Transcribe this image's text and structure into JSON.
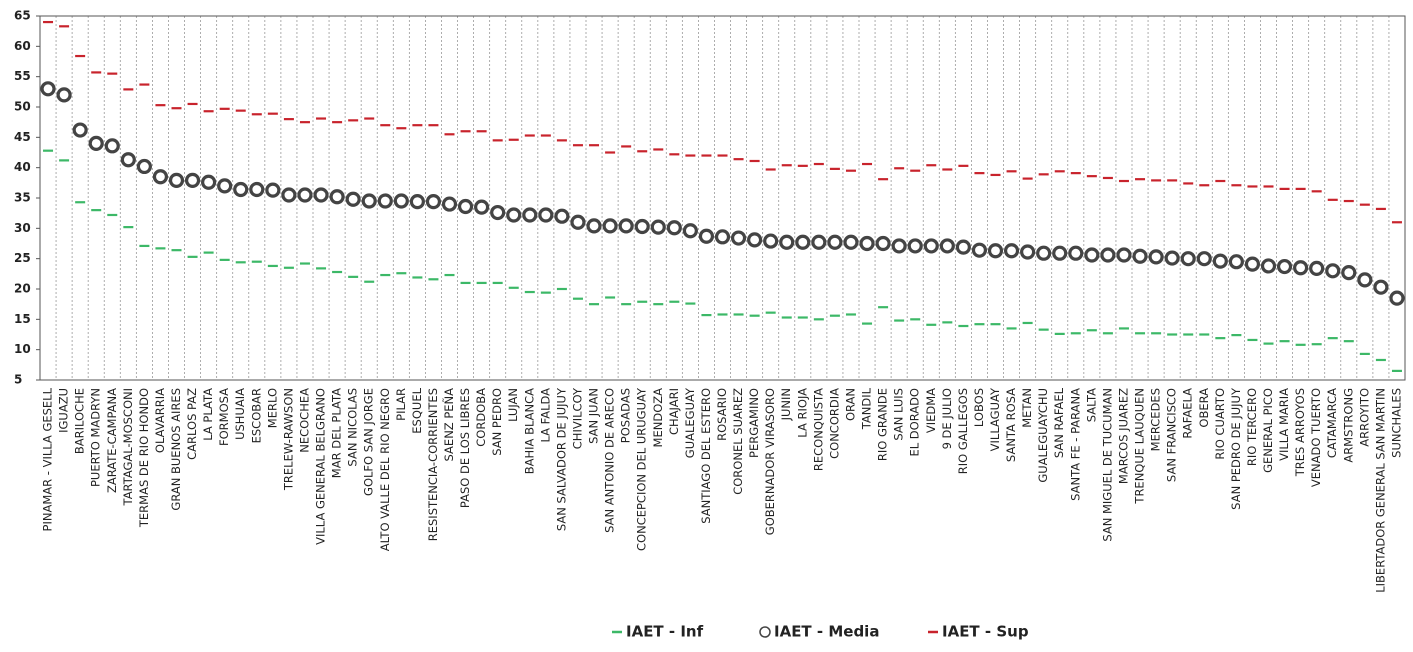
{
  "chart_data": {
    "type": "dot-range",
    "categories": [
      "PINAMAR - VILLA GESELL",
      "IGUAZU",
      "BARILOCHE",
      "PUERTO MADRYN",
      "ZARATE-CAMPANA",
      "TARTAGAL-MOSCONI",
      "TERMAS DE RIO HONDO",
      "OLAVARRIA",
      "GRAN BUENOS AIRES",
      "CARLOS PAZ",
      "LA PLATA",
      "FORMOSA",
      "USHUAIA",
      "ESCOBAR",
      "MERLO",
      "TRELEW-RAWSON",
      "NECOCHEA",
      "VILLA GENERAL BELGRANO",
      "MAR DEL PLATA",
      "SAN NICOLAS",
      "GOLFO SAN JORGE",
      "ALTO VALLE DEL RIO NEGRO",
      "PILAR",
      "ESQUEL",
      "RESISTENCIA-CORRIENTES",
      "SAENZ PEÑA",
      "PASO DE LOS LIBRES",
      "CORDOBA",
      "SAN PEDRO",
      "LUJAN",
      "BAHIA BLANCA",
      "LA FALDA",
      "SAN SALVADOR DE JUJUY",
      "CHIVILCOY",
      "SAN JUAN",
      "SAN ANTONIO DE ARECO",
      "POSADAS",
      "CONCEPCION DEL URUGUAY",
      "MENDOZA",
      "CHAJARI",
      "GUALEGUAY",
      "SANTIAGO DEL ESTERO",
      "ROSARIO",
      "CORONEL SUAREZ",
      "PERGAMINO",
      "GOBERNADOR VIRASORO",
      "JUNIN",
      "LA RIOJA",
      "RECONQUISTA",
      "CONCORDIA",
      "ORAN",
      "TANDIL",
      "RIO GRANDE",
      "SAN LUIS",
      "EL DORADO",
      "VIEDMA",
      "9 DE JULIO",
      "RIO GALLEGOS",
      "LOBOS",
      "VILLAGUAY",
      "SANTA ROSA",
      "METAN",
      "GUALEGUAYCHU",
      "SAN RAFAEL",
      "SANTA FE - PARANA",
      "SALTA",
      "SAN MIGUEL DE TUCUMAN",
      "MARCOS JUAREZ",
      "TRENQUE LAUQUEN",
      "MERCEDES",
      "SAN FRANCISCO",
      "RAFAELA",
      "OBERA",
      "RIO CUARTO",
      "SAN PEDRO DE JUJUY",
      "RIO TERCERO",
      "GENERAL PICO",
      "VILLA MARIA",
      "TRES ARROYOS",
      "VENADO TUERTO",
      "CATAMARCA",
      "ARMSTRONG",
      "ARROYITO",
      "LIBERTADOR GENERAL SAN MARTIN",
      "SUNCHALES"
    ],
    "series": [
      {
        "name": "IAET - Inf",
        "color": "#3cb867",
        "marker": "dash",
        "values": [
          42.8,
          41.2,
          34.3,
          33,
          32.2,
          30.2,
          27.1,
          26.7,
          26.4,
          25.3,
          26,
          24.8,
          24.4,
          24.5,
          23.8,
          23.5,
          24.2,
          23.4,
          22.8,
          22,
          21.2,
          22.3,
          22.6,
          21.9,
          21.6,
          22.3,
          21,
          21,
          21,
          20.2,
          19.5,
          19.4,
          20,
          18.4,
          17.5,
          18.6,
          17.5,
          17.9,
          17.5,
          17.9,
          17.6,
          15.7,
          15.8,
          15.8,
          15.6,
          16.1,
          15.3,
          15.3,
          15,
          15.6,
          15.8,
          14.3,
          17,
          14.8,
          15,
          14.1,
          14.5,
          13.9,
          14.2,
          14.2,
          13.5,
          14.4,
          13.3,
          12.6,
          12.7,
          13.2,
          12.7,
          13.5,
          12.7,
          12.7,
          12.5,
          12.5,
          12.5,
          11.9,
          12.4,
          11.6,
          11,
          11.4,
          10.8,
          10.9,
          11.9,
          11.4,
          9.3,
          8.3,
          6.5
        ]
      },
      {
        "name": "IAET - Media",
        "color": "#444444",
        "marker": "circle",
        "values": [
          53,
          52,
          46.2,
          44,
          43.6,
          41.3,
          40.2,
          38.5,
          37.9,
          37.9,
          37.6,
          37,
          36.4,
          36.4,
          36.3,
          35.5,
          35.5,
          35.5,
          35.2,
          34.8,
          34.5,
          34.5,
          34.5,
          34.4,
          34.4,
          34,
          33.6,
          33.5,
          32.6,
          32.2,
          32.2,
          32.2,
          32,
          31,
          30.4,
          30.4,
          30.4,
          30.3,
          30.2,
          30.1,
          29.6,
          28.7,
          28.6,
          28.4,
          28.1,
          27.9,
          27.7,
          27.7,
          27.7,
          27.7,
          27.7,
          27.5,
          27.5,
          27.1,
          27.1,
          27.1,
          27.1,
          26.9,
          26.4,
          26.3,
          26.3,
          26.1,
          25.9,
          25.9,
          25.9,
          25.6,
          25.6,
          25.6,
          25.4,
          25.3,
          25.1,
          25,
          25,
          24.6,
          24.5,
          24.1,
          23.8,
          23.7,
          23.5,
          23.4,
          23,
          22.7,
          21.5,
          20.3,
          18.5
        ]
      },
      {
        "name": "IAET - Sup",
        "color": "#c8232c",
        "marker": "dash",
        "values": [
          64,
          63.3,
          58.4,
          55.7,
          55.5,
          52.9,
          53.7,
          50.3,
          49.8,
          50.5,
          49.3,
          49.7,
          49.4,
          48.8,
          48.9,
          48,
          47.5,
          48.1,
          47.5,
          47.8,
          48.1,
          47,
          46.5,
          47,
          47,
          45.5,
          46,
          46,
          44.5,
          44.6,
          45.3,
          45.3,
          44.5,
          43.7,
          43.7,
          42.5,
          43.5,
          42.7,
          43,
          42.2,
          42,
          42,
          42,
          41.4,
          41.1,
          39.7,
          40.4,
          40.3,
          40.6,
          39.8,
          39.5,
          40.6,
          38.1,
          39.9,
          39.5,
          40.4,
          39.7,
          40.3,
          39.1,
          38.8,
          39.4,
          38.2,
          38.9,
          39.4,
          39.1,
          38.6,
          38.3,
          37.8,
          38.1,
          37.9,
          37.9,
          37.4,
          37.1,
          37.8,
          37.1,
          36.9,
          36.9,
          36.5,
          36.5,
          36.1,
          34.7,
          34.5,
          33.9,
          33.2,
          31
        ]
      }
    ],
    "ylim": [
      5,
      65
    ],
    "yticks": [
      5,
      10,
      15,
      20,
      25,
      30,
      35,
      40,
      45,
      50,
      55,
      60,
      65
    ],
    "grid": true
  }
}
